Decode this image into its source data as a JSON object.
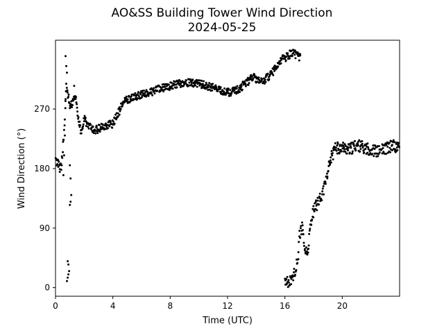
{
  "chart_data": {
    "type": "scatter",
    "title": "AO&SS Building Tower Wind Direction",
    "subtitle": "2024-05-25",
    "xlabel": "Time (UTC)",
    "ylabel": "Wind Direction (°)",
    "xlim": [
      0,
      24
    ],
    "ylim": [
      -13,
      374
    ],
    "xticks": [
      0,
      4,
      8,
      12,
      16,
      20
    ],
    "yticks": [
      0,
      90,
      180,
      270
    ],
    "grid": false,
    "marker_color": "#000000",
    "series": [
      {
        "trend": [
          [
            0.0,
            192
          ],
          [
            0.4,
            182
          ],
          [
            0.6,
            235
          ],
          [
            0.75,
            305
          ],
          [
            0.9,
            290
          ],
          [
            1.0,
            275
          ],
          [
            1.2,
            280
          ],
          [
            1.4,
            290
          ],
          [
            1.6,
            255
          ],
          [
            1.8,
            232
          ],
          [
            2.0,
            255
          ],
          [
            2.3,
            245
          ],
          [
            2.6,
            238
          ],
          [
            3.0,
            240
          ],
          [
            3.5,
            245
          ],
          [
            4.0,
            248
          ],
          [
            4.4,
            265
          ],
          [
            4.8,
            283
          ],
          [
            5.5,
            288
          ],
          [
            6.5,
            295
          ],
          [
            7.5,
            302
          ],
          [
            8.5,
            308
          ],
          [
            9.5,
            310
          ],
          [
            10.5,
            306
          ],
          [
            11.5,
            298
          ],
          [
            12.2,
            295
          ],
          [
            12.8,
            300
          ],
          [
            13.3,
            310
          ],
          [
            13.8,
            318
          ],
          [
            14.3,
            310
          ],
          [
            14.8,
            318
          ],
          [
            15.3,
            330
          ],
          [
            15.8,
            345
          ],
          [
            16.2,
            350
          ],
          [
            16.5,
            355
          ],
          [
            16.8,
            352
          ],
          [
            17.1,
            348
          ]
        ],
        "outliers": [
          [
            0.8,
            10
          ],
          [
            0.85,
            15
          ],
          [
            0.9,
            20
          ],
          [
            0.95,
            25
          ],
          [
            0.9,
            35
          ],
          [
            0.85,
            40
          ],
          [
            1.0,
            125
          ],
          [
            1.05,
            130
          ],
          [
            1.1,
            140
          ],
          [
            1.05,
            165
          ],
          [
            1.0,
            185
          ],
          [
            0.7,
            350
          ],
          [
            0.75,
            335
          ],
          [
            0.8,
            325
          ],
          [
            0.65,
            230
          ],
          [
            0.6,
            200
          ],
          [
            0.55,
            170
          ],
          [
            0.7,
            285
          ],
          [
            1.3,
            305
          ],
          [
            0.3,
            175
          ]
        ],
        "recovery": [
          [
            16.0,
            15
          ],
          [
            16.2,
            8
          ],
          [
            16.5,
            10
          ],
          [
            16.7,
            25
          ],
          [
            16.9,
            40
          ],
          [
            17.0,
            75
          ],
          [
            17.2,
            90
          ],
          [
            17.4,
            60
          ],
          [
            17.6,
            50
          ],
          [
            17.8,
            95
          ],
          [
            18.0,
            115
          ],
          [
            18.2,
            125
          ],
          [
            18.5,
            135
          ],
          [
            18.8,
            155
          ],
          [
            19.0,
            175
          ],
          [
            19.2,
            195
          ],
          [
            19.5,
            210
          ],
          [
            20.0,
            212
          ],
          [
            20.5,
            208
          ],
          [
            21.0,
            215
          ],
          [
            21.5,
            212
          ],
          [
            22.0,
            208
          ],
          [
            22.5,
            205
          ],
          [
            23.0,
            210
          ],
          [
            23.5,
            215
          ],
          [
            24.0,
            212
          ]
        ]
      }
    ]
  }
}
